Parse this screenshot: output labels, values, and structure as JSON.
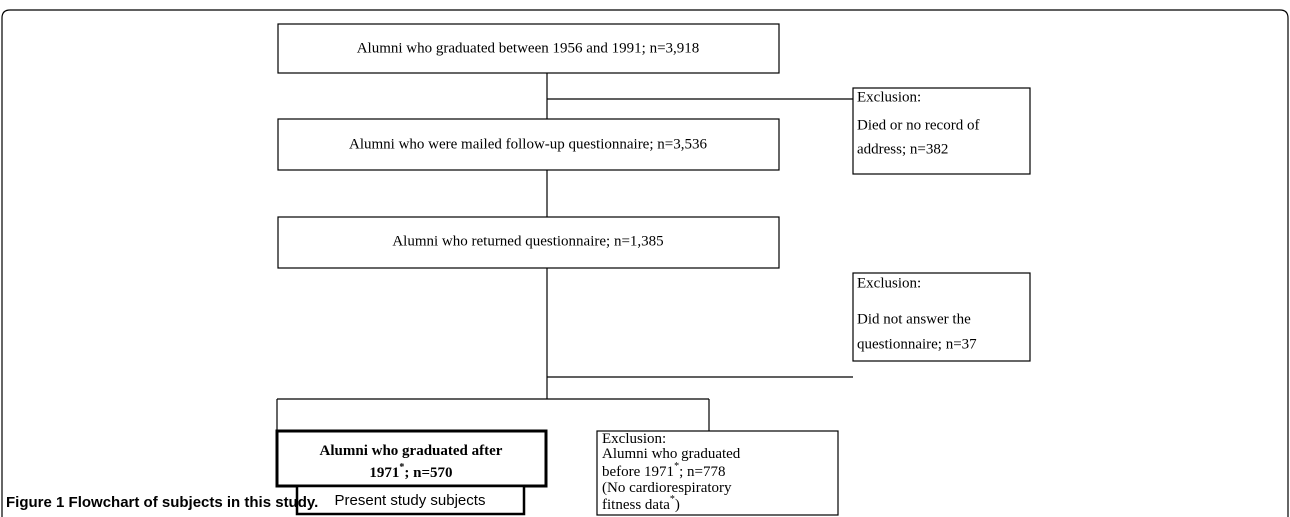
{
  "nodes": [
    {
      "lines": [
        "Alumni who graduated between 1956 and 1991; n=3,918"
      ]
    },
    {
      "lines": [
        "Exclusion:",
        "Died or no record of",
        "address; n=382"
      ]
    },
    {
      "lines": [
        "Alumni who were mailed follow-up questionnaire; n=3,536"
      ]
    },
    {
      "lines": [
        "Alumni who returned questionnaire; n=1,385"
      ]
    },
    {
      "lines": [
        "Exclusion:",
        "Did not answer the",
        "questionnaire; n=37"
      ]
    },
    {
      "lines": [
        [
          "Alumni who graduated after"
        ],
        [
          "1971",
          "*",
          "; n=570"
        ]
      ]
    },
    {
      "lines": [
        "Present study subjects"
      ]
    },
    {
      "lines": [
        [
          "Exclusion:"
        ],
        [
          "Alumni who graduated"
        ],
        [
          "before 1971",
          "*",
          "; n=778"
        ],
        [
          "(No cardiorespiratory"
        ],
        [
          "fitness data",
          "*",
          ")"
        ]
      ]
    }
  ],
  "caption": {
    "label": "Figure 1",
    "text": "Flowchart of subjects in this study."
  }
}
